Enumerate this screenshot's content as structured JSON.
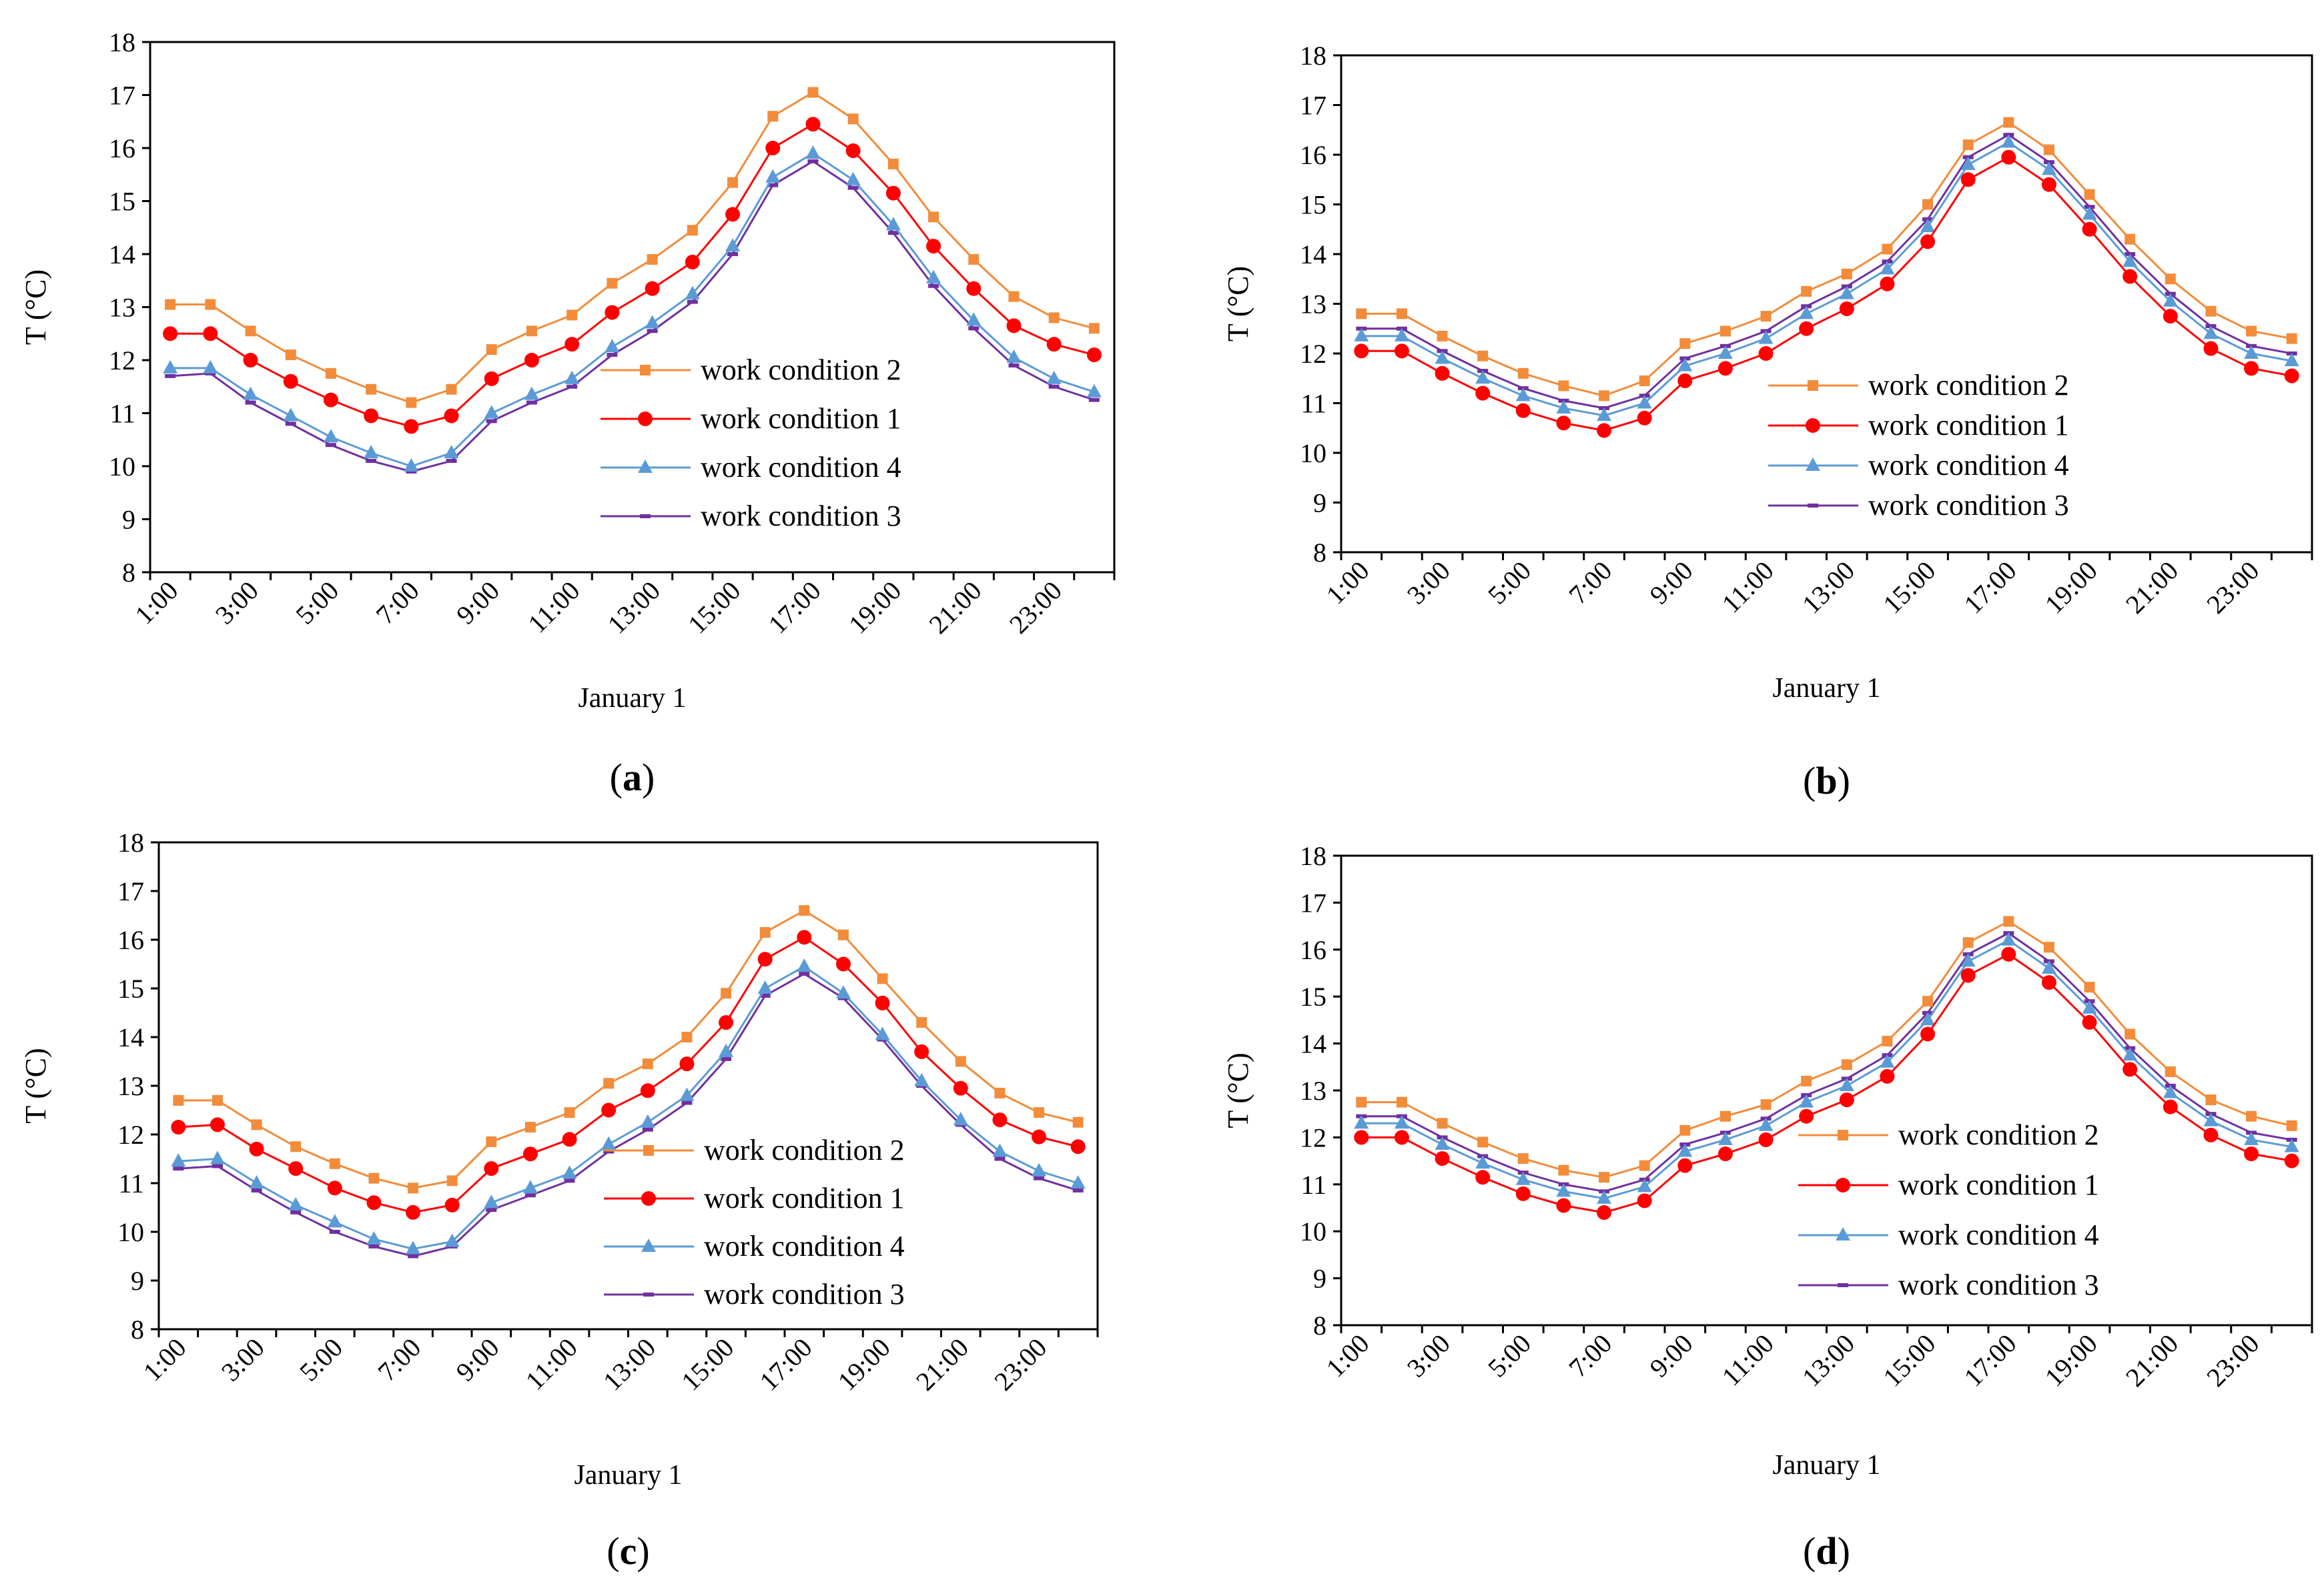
{
  "colors": {
    "work_condition_2": "#F28C3A",
    "work_condition_1": "#FF0000",
    "work_condition_4": "#5B9BD5",
    "work_condition_3": "#7030A0",
    "axis": "#000000"
  },
  "chart_data": [
    {
      "panel": "(a)",
      "panel_letter": "a",
      "type": "line",
      "xlabel": "January 1",
      "ylabel": "T (°C)",
      "ylim": [
        8,
        18
      ],
      "yticks": [
        8,
        9,
        10,
        11,
        12,
        13,
        14,
        15,
        16,
        17,
        18
      ],
      "x_tick_labels": [
        "1:00",
        "3:00",
        "5:00",
        "7:00",
        "9:00",
        "11:00",
        "13:00",
        "15:00",
        "17:00",
        "19:00",
        "21:00",
        "23:00"
      ],
      "categories": [
        "1:00",
        "2:00",
        "3:00",
        "4:00",
        "5:00",
        "6:00",
        "7:00",
        "8:00",
        "9:00",
        "10:00",
        "11:00",
        "12:00",
        "13:00",
        "14:00",
        "15:00",
        "16:00",
        "17:00",
        "18:00",
        "19:00",
        "20:00",
        "21:00",
        "22:00",
        "23:00",
        "24:00"
      ],
      "legend": [
        "work condition 2",
        "work condition 1",
        "work condition 4",
        "work condition 3"
      ],
      "series": [
        {
          "name": "work condition 2",
          "marker": "square",
          "values": [
            13.05,
            13.05,
            12.55,
            12.1,
            11.75,
            11.45,
            11.2,
            11.45,
            12.2,
            12.55,
            12.85,
            13.45,
            13.9,
            14.45,
            15.35,
            16.6,
            17.05,
            16.55,
            15.7,
            14.7,
            13.9,
            13.2,
            12.8,
            12.6
          ]
        },
        {
          "name": "work condition 1",
          "marker": "circle",
          "values": [
            12.5,
            12.5,
            12.0,
            11.6,
            11.25,
            10.95,
            10.75,
            10.95,
            11.65,
            12.0,
            12.3,
            12.9,
            13.35,
            13.85,
            14.75,
            16.0,
            16.45,
            15.95,
            15.15,
            14.15,
            13.35,
            12.65,
            12.3,
            12.1
          ]
        },
        {
          "name": "work condition 4",
          "marker": "triangle",
          "values": [
            11.85,
            11.85,
            11.35,
            10.95,
            10.55,
            10.25,
            10.0,
            10.25,
            11.0,
            11.35,
            11.65,
            12.25,
            12.7,
            13.25,
            14.15,
            15.45,
            15.9,
            15.4,
            14.55,
            13.55,
            12.75,
            12.05,
            11.65,
            11.4
          ]
        },
        {
          "name": "work condition 3",
          "marker": "dash",
          "values": [
            11.7,
            11.75,
            11.2,
            10.8,
            10.4,
            10.1,
            9.9,
            10.1,
            10.85,
            11.2,
            11.5,
            12.1,
            12.55,
            13.1,
            14.0,
            15.3,
            15.75,
            15.25,
            14.4,
            13.4,
            12.6,
            11.9,
            11.5,
            11.25
          ]
        }
      ]
    },
    {
      "panel": "(b)",
      "panel_letter": "b",
      "type": "line",
      "xlabel": "January 1",
      "ylabel": "T (°C)",
      "ylim": [
        8,
        18
      ],
      "yticks": [
        8,
        9,
        10,
        11,
        12,
        13,
        14,
        15,
        16,
        17,
        18
      ],
      "x_tick_labels": [
        "1:00",
        "3:00",
        "5:00",
        "7:00",
        "9:00",
        "11:00",
        "13:00",
        "15:00",
        "17:00",
        "19:00",
        "21:00",
        "23:00"
      ],
      "categories": [
        "1:00",
        "2:00",
        "3:00",
        "4:00",
        "5:00",
        "6:00",
        "7:00",
        "8:00",
        "9:00",
        "10:00",
        "11:00",
        "12:00",
        "13:00",
        "14:00",
        "15:00",
        "16:00",
        "17:00",
        "18:00",
        "19:00",
        "20:00",
        "21:00",
        "22:00",
        "23:00",
        "24:00"
      ],
      "legend": [
        "work condition 2",
        "work condition 1",
        "work condition 4",
        "work condition 3"
      ],
      "series": [
        {
          "name": "work condition 2",
          "marker": "square",
          "values": [
            12.8,
            12.8,
            12.35,
            11.95,
            11.6,
            11.35,
            11.15,
            11.45,
            12.2,
            12.45,
            12.75,
            13.25,
            13.6,
            14.1,
            15.0,
            16.2,
            16.65,
            16.1,
            15.2,
            14.3,
            13.5,
            12.85,
            12.45,
            12.3
          ]
        },
        {
          "name": "work condition 1",
          "marker": "circle",
          "values": [
            12.05,
            12.05,
            11.6,
            11.2,
            10.85,
            10.6,
            10.45,
            10.7,
            11.45,
            11.7,
            12.0,
            12.5,
            12.9,
            13.4,
            14.25,
            15.5,
            15.95,
            15.4,
            14.5,
            13.55,
            12.75,
            12.1,
            11.7,
            11.55
          ]
        },
        {
          "name": "work condition 4",
          "marker": "triangle",
          "values": [
            12.35,
            12.35,
            11.9,
            11.5,
            11.15,
            10.9,
            10.75,
            11.0,
            11.75,
            12.0,
            12.3,
            12.8,
            13.2,
            13.7,
            14.55,
            15.8,
            16.25,
            15.7,
            14.8,
            13.85,
            13.05,
            12.4,
            12.0,
            11.85
          ]
        },
        {
          "name": "work condition 3",
          "marker": "dash",
          "values": [
            12.5,
            12.5,
            12.05,
            11.65,
            11.3,
            11.05,
            10.9,
            11.15,
            11.9,
            12.15,
            12.45,
            12.95,
            13.35,
            13.85,
            14.7,
            15.95,
            16.4,
            15.85,
            14.95,
            14.0,
            13.2,
            12.55,
            12.15,
            12.0
          ]
        }
      ]
    },
    {
      "panel": "(c)",
      "panel_letter": "c",
      "type": "line",
      "xlabel": "January 1",
      "ylabel": "T (°C)",
      "ylim": [
        8,
        18
      ],
      "yticks": [
        8,
        9,
        10,
        11,
        12,
        13,
        14,
        15,
        16,
        17,
        18
      ],
      "x_tick_labels": [
        "1:00",
        "3:00",
        "5:00",
        "7:00",
        "9:00",
        "11:00",
        "13:00",
        "15:00",
        "17:00",
        "19:00",
        "21:00",
        "23:00"
      ],
      "categories": [
        "1:00",
        "2:00",
        "3:00",
        "4:00",
        "5:00",
        "6:00",
        "7:00",
        "8:00",
        "9:00",
        "10:00",
        "11:00",
        "12:00",
        "13:00",
        "14:00",
        "15:00",
        "16:00",
        "17:00",
        "18:00",
        "19:00",
        "20:00",
        "21:00",
        "22:00",
        "23:00",
        "24:00"
      ],
      "legend": [
        "work condition 2",
        "work condition 1",
        "work condition 4",
        "work condition 3"
      ],
      "series": [
        {
          "name": "work condition 2",
          "marker": "square",
          "values": [
            12.7,
            12.7,
            12.2,
            11.75,
            11.4,
            11.1,
            10.9,
            11.05,
            11.85,
            12.15,
            12.45,
            13.05,
            13.45,
            14.0,
            14.9,
            16.15,
            16.6,
            16.1,
            15.2,
            14.3,
            13.5,
            12.85,
            12.45,
            12.25
          ]
        },
        {
          "name": "work condition 1",
          "marker": "circle",
          "values": [
            12.15,
            12.2,
            11.7,
            11.3,
            10.9,
            10.6,
            10.4,
            10.55,
            11.3,
            11.6,
            11.9,
            12.5,
            12.9,
            13.45,
            14.3,
            15.6,
            16.05,
            15.5,
            14.7,
            13.7,
            12.95,
            12.3,
            11.95,
            11.75
          ]
        },
        {
          "name": "work condition 4",
          "marker": "triangle",
          "values": [
            11.45,
            11.5,
            11.0,
            10.55,
            10.2,
            9.85,
            9.65,
            9.8,
            10.6,
            10.9,
            11.2,
            11.8,
            12.25,
            12.8,
            13.7,
            15.0,
            15.45,
            14.9,
            14.05,
            13.1,
            12.3,
            11.65,
            11.25,
            11.0
          ]
        },
        {
          "name": "work condition 3",
          "marker": "dash",
          "values": [
            11.3,
            11.35,
            10.85,
            10.4,
            10.0,
            9.7,
            9.5,
            9.7,
            10.45,
            10.75,
            11.05,
            11.65,
            12.1,
            12.65,
            13.55,
            14.85,
            15.3,
            14.8,
            13.95,
            13.0,
            12.2,
            11.5,
            11.1,
            10.85
          ]
        }
      ]
    },
    {
      "panel": "(d)",
      "panel_letter": "d",
      "type": "line",
      "xlabel": "January 1",
      "ylabel": "T (°C)",
      "ylim": [
        8,
        18
      ],
      "yticks": [
        8,
        9,
        10,
        11,
        12,
        13,
        14,
        15,
        16,
        17,
        18
      ],
      "x_tick_labels": [
        "1:00",
        "3:00",
        "5:00",
        "7:00",
        "9:00",
        "11:00",
        "13:00",
        "15:00",
        "17:00",
        "19:00",
        "21:00",
        "23:00"
      ],
      "categories": [
        "1:00",
        "2:00",
        "3:00",
        "4:00",
        "5:00",
        "6:00",
        "7:00",
        "8:00",
        "9:00",
        "10:00",
        "11:00",
        "12:00",
        "13:00",
        "14:00",
        "15:00",
        "16:00",
        "17:00",
        "18:00",
        "19:00",
        "20:00",
        "21:00",
        "22:00",
        "23:00",
        "24:00"
      ],
      "legend": [
        "work condition 2",
        "work condition 1",
        "work condition 4",
        "work condition 3"
      ],
      "series": [
        {
          "name": "work condition 2",
          "marker": "square",
          "values": [
            12.75,
            12.75,
            12.3,
            11.9,
            11.55,
            11.3,
            11.15,
            11.4,
            12.15,
            12.45,
            12.7,
            13.2,
            13.55,
            14.05,
            14.9,
            16.15,
            16.6,
            16.05,
            15.2,
            14.2,
            13.4,
            12.8,
            12.45,
            12.25
          ]
        },
        {
          "name": "work condition 1",
          "marker": "circle",
          "values": [
            12.0,
            12.0,
            11.55,
            11.15,
            10.8,
            10.55,
            10.4,
            10.65,
            11.4,
            11.65,
            11.95,
            12.45,
            12.8,
            13.3,
            14.2,
            15.45,
            15.9,
            15.3,
            14.45,
            13.45,
            12.65,
            12.05,
            11.65,
            11.5
          ]
        },
        {
          "name": "work condition 4",
          "marker": "triangle",
          "values": [
            12.3,
            12.3,
            11.85,
            11.45,
            11.1,
            10.85,
            10.7,
            10.95,
            11.7,
            11.95,
            12.25,
            12.75,
            13.1,
            13.6,
            14.5,
            15.75,
            16.2,
            15.6,
            14.75,
            13.75,
            12.95,
            12.35,
            11.95,
            11.8
          ]
        },
        {
          "name": "work condition 3",
          "marker": "dash",
          "values": [
            12.45,
            12.45,
            12.0,
            11.6,
            11.25,
            11.0,
            10.85,
            11.1,
            11.85,
            12.1,
            12.4,
            12.9,
            13.25,
            13.75,
            14.65,
            15.9,
            16.35,
            15.75,
            14.9,
            13.9,
            13.1,
            12.5,
            12.1,
            11.95
          ]
        }
      ]
    }
  ]
}
